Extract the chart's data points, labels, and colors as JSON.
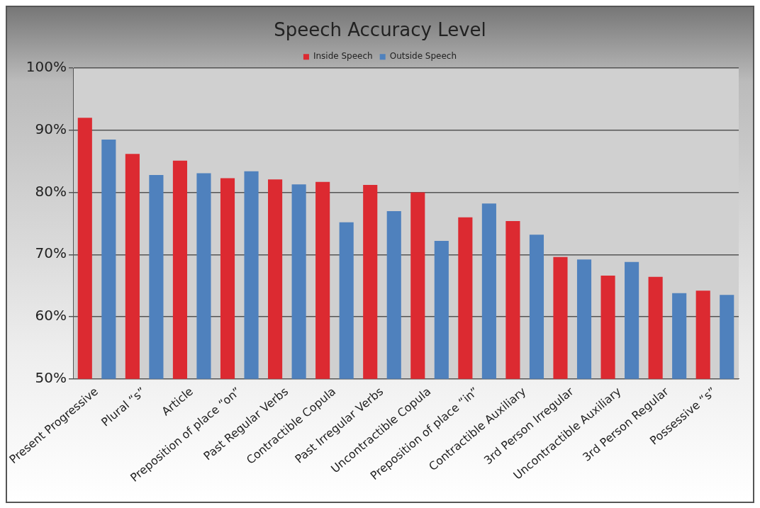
{
  "chart_data": {
    "type": "bar",
    "title": "Speech Accuracy Level",
    "categories": [
      "Present Progressive",
      "Plural “s”",
      "Article",
      "Preposition of place “on”",
      "Past Regular Verbs",
      "Contractible Copula",
      "Past Irregular Verbs",
      "Uncontractible Copula",
      "Preposition of place “in”",
      "Contractible Auxiliary",
      "3rd Person Irregular",
      "Uncontractible Auxiliary",
      "3rd Person Regular",
      "Possessive “s”"
    ],
    "series": [
      {
        "name": "Inside Speech",
        "color": "#dc2a31",
        "values": [
          92,
          86.2,
          85.1,
          82.3,
          82.1,
          81.7,
          81.2,
          80,
          76,
          75.4,
          69.6,
          66.6,
          66.4,
          64.2
        ]
      },
      {
        "name": "Outside Speech",
        "color": "#4f81bd",
        "values": [
          88.5,
          82.8,
          83.1,
          83.4,
          81.3,
          75.2,
          77,
          72.2,
          78.2,
          73.2,
          69.2,
          68.8,
          63.8,
          63.5
        ]
      }
    ],
    "ylim": [
      50,
      100
    ],
    "yticks": [
      {
        "value": 50,
        "label": "50%"
      },
      {
        "value": 60,
        "label": "60%"
      },
      {
        "value": 70,
        "label": "70%"
      },
      {
        "value": 80,
        "label": "80%"
      },
      {
        "value": 90,
        "label": "90%"
      },
      {
        "value": 100,
        "label": "100%"
      }
    ],
    "grid": "y",
    "legend": "top"
  }
}
